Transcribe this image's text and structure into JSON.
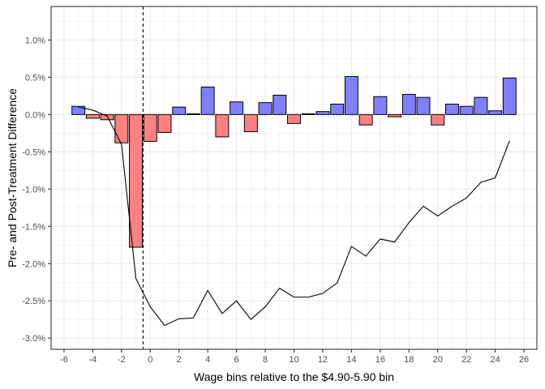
{
  "chart_data": {
    "type": "bar",
    "xlabel": "Wage bins relative to the $4.90-5.90 bin",
    "ylabel": "Pre- and Post-Treatment Difference",
    "xlim": [
      -6.9,
      26.9
    ],
    "ylim": [
      -3.15,
      1.45
    ],
    "x_ticks": [
      -6,
      -4,
      -2,
      0,
      2,
      4,
      6,
      8,
      10,
      12,
      14,
      16,
      18,
      20,
      22,
      24,
      26
    ],
    "x_tick_labels": [
      "-6",
      "-4",
      "-2",
      "0",
      "2",
      "4",
      "6",
      "8",
      "10",
      "12",
      "14",
      "16",
      "18",
      "20",
      "22",
      "24",
      "26"
    ],
    "y_ticks": [
      1.0,
      0.5,
      0.0,
      -0.5,
      -1.0,
      -1.5,
      -2.0,
      -2.5,
      -3.0
    ],
    "y_tick_labels": [
      "1.0%",
      "0.5%",
      "0.0%",
      "-0.5%",
      "-1.0%",
      "-1.5%",
      "-2.0%",
      "-2.5%",
      "-3.0%"
    ],
    "grid": true,
    "reference_line_x": -0.5,
    "colors": {
      "positive_bar": "#8080ff",
      "negative_bar": "#ff8080",
      "bar_outline": "#000000",
      "line": "#000000",
      "grid": "#ebebeb",
      "panel_border": "#333333"
    },
    "bars": {
      "x": [
        -5,
        -4,
        -3,
        -2,
        -1,
        0,
        1,
        2,
        3,
        4,
        5,
        6,
        7,
        8,
        9,
        10,
        11,
        12,
        13,
        14,
        15,
        16,
        17,
        18,
        19,
        20,
        21,
        22,
        23,
        24,
        25
      ],
      "values": [
        0.11,
        -0.05,
        -0.07,
        -0.38,
        -1.78,
        -0.36,
        -0.24,
        0.1,
        0.01,
        0.37,
        -0.3,
        0.17,
        -0.23,
        0.16,
        0.26,
        -0.12,
        0.01,
        0.04,
        0.14,
        0.51,
        -0.14,
        0.24,
        -0.03,
        0.27,
        0.23,
        -0.14,
        0.14,
        0.11,
        0.23,
        0.05,
        0.49
      ]
    },
    "series": [
      {
        "x": [
          -5,
          -4,
          -3,
          -2,
          -1,
          0,
          1,
          2,
          3,
          4,
          5,
          6,
          7,
          8,
          9,
          10,
          11,
          12,
          13,
          14,
          15,
          16,
          17,
          18,
          19,
          20,
          21,
          22,
          23,
          24,
          25
        ],
        "values": [
          0.1,
          0.06,
          -0.02,
          -0.4,
          -2.2,
          -2.58,
          -2.83,
          -2.74,
          -2.73,
          -2.36,
          -2.67,
          -2.5,
          -2.75,
          -2.58,
          -2.33,
          -2.45,
          -2.45,
          -2.4,
          -2.26,
          -1.77,
          -1.9,
          -1.67,
          -1.71,
          -1.45,
          -1.23,
          -1.36,
          -1.23,
          -1.12,
          -0.91,
          -0.85,
          -0.35
        ]
      }
    ]
  }
}
